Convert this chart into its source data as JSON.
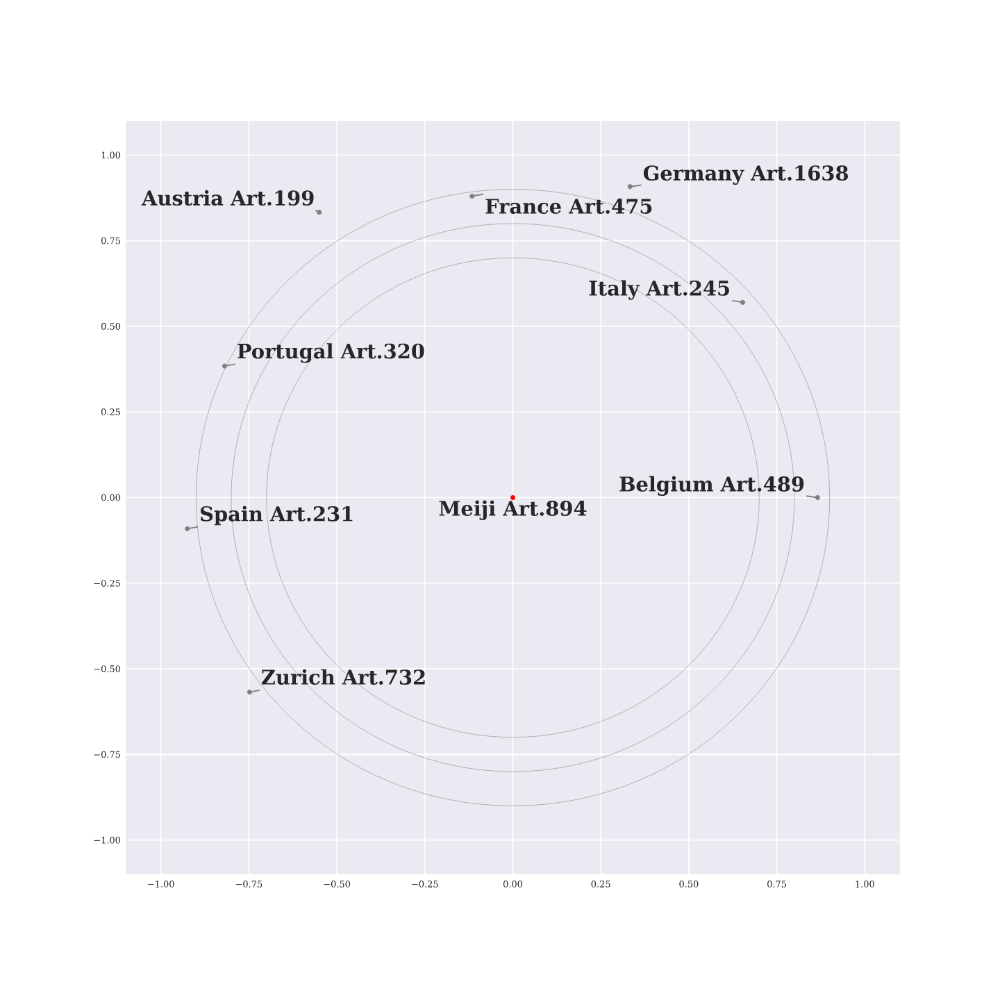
{
  "chart_data": {
    "type": "scatter",
    "xlim": [
      -1.1,
      1.1
    ],
    "ylim": [
      -1.1,
      1.1
    ],
    "xticks": [
      {
        "value": -1.0,
        "label": "−1.00"
      },
      {
        "value": -0.75,
        "label": "−0.75"
      },
      {
        "value": -0.5,
        "label": "−0.50"
      },
      {
        "value": -0.25,
        "label": "−0.25"
      },
      {
        "value": 0.0,
        "label": "0.00"
      },
      {
        "value": 0.25,
        "label": "0.25"
      },
      {
        "value": 0.5,
        "label": "0.50"
      },
      {
        "value": 0.75,
        "label": "0.75"
      },
      {
        "value": 1.0,
        "label": "1.00"
      }
    ],
    "yticks": [
      {
        "value": -1.0,
        "label": "−1.00"
      },
      {
        "value": -0.75,
        "label": "−0.75"
      },
      {
        "value": -0.5,
        "label": "−0.50"
      },
      {
        "value": -0.25,
        "label": "−0.25"
      },
      {
        "value": 0.0,
        "label": "0.00"
      },
      {
        "value": 0.25,
        "label": "0.25"
      },
      {
        "value": 0.5,
        "label": "0.50"
      },
      {
        "value": 0.75,
        "label": "0.75"
      },
      {
        "value": 1.0,
        "label": "1.00"
      }
    ],
    "grid": true,
    "series": [
      {
        "x": [
          0.333,
          -0.116,
          -0.55,
          0.653,
          -0.819,
          0.866,
          -0.925,
          -0.748,
          0.0
        ],
        "values": [
          0.908,
          0.88,
          0.833,
          0.57,
          0.384,
          0.0,
          -0.091,
          -0.568,
          0.0
        ],
        "colors": [
          "#808080",
          "#808080",
          "#808080",
          "#808080",
          "#808080",
          "#808080",
          "#808080",
          "#808080",
          "#ff0000"
        ]
      }
    ],
    "annotations": [
      {
        "text": "Germany Art.1638",
        "x": 0.333,
        "y": 0.908
      },
      {
        "text": "France Art.475",
        "x": -0.116,
        "y": 0.88
      },
      {
        "text": "Austria Art.199",
        "x": -0.55,
        "y": 0.833
      },
      {
        "text": "Italy Art.245",
        "x": 0.653,
        "y": 0.57
      },
      {
        "text": "Portugal Art.320",
        "x": -0.819,
        "y": 0.384
      },
      {
        "text": "Belgium Art.489",
        "x": 0.866,
        "y": 0.0
      },
      {
        "text": "Spain Art.231",
        "x": -0.925,
        "y": -0.091
      },
      {
        "text": "Zurich Art.732",
        "x": -0.748,
        "y": -0.568
      },
      {
        "text": "Meiji Art.894",
        "x": 0.0,
        "y": 0.0
      }
    ]
  }
}
